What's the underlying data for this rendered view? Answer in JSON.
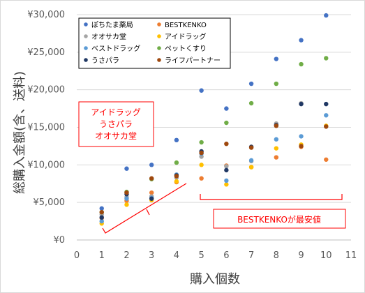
{
  "chart_data": {
    "type": "scatter",
    "title": "",
    "xlabel": "購入個数",
    "ylabel": "総購入金額(含、送料)",
    "xlim": [
      0,
      11
    ],
    "ylim": [
      0,
      30000
    ],
    "x_ticks": [
      "0",
      "1",
      "2",
      "3",
      "4",
      "5",
      "6",
      "7",
      "8",
      "9",
      "10",
      "11"
    ],
    "y_ticks": [
      "¥0",
      "¥5,000",
      "¥10,000",
      "¥15,000",
      "¥20,000",
      "¥25,000",
      "¥30,000"
    ],
    "grid": "horizontal",
    "legend_position": "top-left",
    "series": [
      {
        "name": "ぽちたま薬局",
        "color": "#4472c4",
        "points": [
          [
            1,
            4200
          ],
          [
            2,
            9500
          ],
          [
            3,
            10000
          ],
          [
            4,
            13300
          ],
          [
            5,
            19900
          ],
          [
            6,
            17500
          ],
          [
            7,
            20800
          ],
          [
            8,
            24100
          ],
          [
            9,
            26600
          ],
          [
            10,
            29900
          ]
        ]
      },
      {
        "name": "BESTKENKO",
        "color": "#ed7d31",
        "points": [
          [
            1,
            2900
          ],
          [
            2,
            5200
          ],
          [
            3,
            6300
          ],
          [
            4,
            7700
          ],
          [
            5,
            8200
          ],
          [
            6,
            9900
          ],
          [
            7,
            9700
          ],
          [
            8,
            11000
          ],
          [
            9,
            12400
          ],
          [
            10,
            10700
          ]
        ]
      },
      {
        "name": "オオサカ堂",
        "color": "#a5a5a5",
        "points": [
          [
            1,
            3400
          ],
          [
            2,
            5700
          ],
          [
            3,
            5800
          ],
          [
            4,
            8300
          ],
          [
            5,
            11100
          ],
          [
            6,
            9800
          ],
          [
            7,
            10500
          ],
          [
            8,
            15500
          ],
          [
            9,
            18200
          ],
          [
            10,
            15100
          ]
        ]
      },
      {
        "name": "アイドラッグ",
        "color": "#ffc000",
        "points": [
          [
            1,
            2200
          ],
          [
            2,
            4700
          ],
          [
            3,
            5300
          ],
          [
            4,
            7800
          ],
          [
            5,
            10000
          ],
          [
            6,
            7400
          ],
          [
            7,
            9700
          ],
          [
            8,
            12200
          ],
          [
            9,
            12700
          ],
          [
            10,
            15200
          ]
        ]
      },
      {
        "name": "ベストドラッグ",
        "color": "#5b9bd5",
        "points": [
          [
            1,
            2500
          ],
          [
            2,
            5500
          ],
          [
            3,
            5600
          ],
          [
            4,
            8700
          ],
          [
            5,
            11500
          ],
          [
            6,
            7900
          ],
          [
            7,
            10600
          ],
          [
            8,
            13400
          ],
          [
            9,
            13800
          ],
          [
            10,
            16600
          ]
        ]
      },
      {
        "name": "ペットくすり",
        "color": "#70ad47",
        "points": [
          [
            1,
            3700
          ],
          [
            2,
            6400
          ],
          [
            3,
            8100
          ],
          [
            4,
            10300
          ],
          [
            5,
            13000
          ],
          [
            6,
            15600
          ],
          [
            7,
            18200
          ],
          [
            8,
            20800
          ],
          [
            9,
            23400
          ],
          [
            10,
            24200
          ]
        ]
      },
      {
        "name": "うさパラ",
        "color": "#203864",
        "points": [
          [
            1,
            3000
          ],
          [
            2,
            6100
          ],
          [
            3,
            5500
          ],
          [
            4,
            8600
          ],
          [
            5,
            11800
          ],
          [
            6,
            9300
          ],
          [
            7,
            12400
          ],
          [
            8,
            15300
          ],
          [
            9,
            18100
          ],
          [
            10,
            18100
          ]
        ]
      },
      {
        "name": "ライフパートナー",
        "color": "#9e480e",
        "points": [
          [
            1,
            3700
          ],
          [
            2,
            6300
          ],
          [
            3,
            8200
          ],
          [
            4,
            8500
          ],
          [
            5,
            11600
          ],
          [
            6,
            12800
          ],
          [
            7,
            12300
          ],
          [
            8,
            15200
          ],
          [
            9,
            12500
          ],
          [
            10,
            15100
          ]
        ]
      }
    ],
    "annotations": [
      {
        "name": "annotation-cheapest-small",
        "lines": [
          "アイドラッグ",
          "うさパラ",
          "オオサカ堂"
        ]
      },
      {
        "name": "annotation-cheapest-large",
        "lines": [
          "BESTKENKOが最安値"
        ]
      }
    ],
    "annotation_color": "#ff0000"
  }
}
